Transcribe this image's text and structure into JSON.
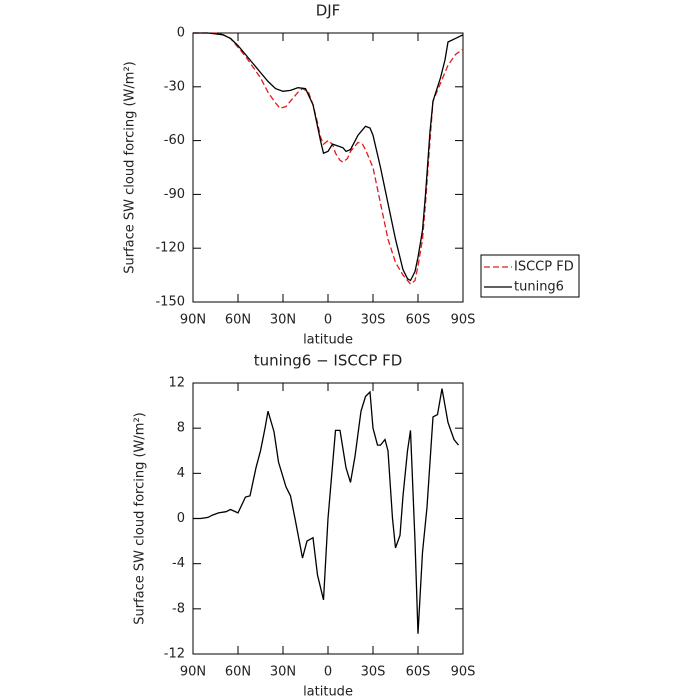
{
  "chart_data": [
    {
      "type": "line",
      "title": "DJF",
      "x_label": "latitude",
      "y_label": "Surface SW cloud forcing (W/m²)",
      "xlim": [
        90,
        -90
      ],
      "xticks": [
        {
          "value": 90,
          "label": "90N"
        },
        {
          "value": 60,
          "label": "60N"
        },
        {
          "value": 30,
          "label": "30N"
        },
        {
          "value": 0,
          "label": "0"
        },
        {
          "value": -30,
          "label": "30S"
        },
        {
          "value": -60,
          "label": "60S"
        },
        {
          "value": -90,
          "label": "90S"
        }
      ],
      "ylim": [
        -150,
        0
      ],
      "yticks": [
        -150,
        -120,
        -90,
        -60,
        -30,
        0
      ],
      "legend": "right",
      "series": [
        {
          "name": "ISCCP FD",
          "color": "#e41a1c",
          "dash": "dashed",
          "x": [
            90,
            85,
            80,
            75,
            70,
            65,
            60,
            55,
            50,
            45,
            40,
            35,
            32,
            28,
            25,
            20,
            17,
            13,
            10,
            7,
            5,
            3,
            0,
            -3,
            -5,
            -8,
            -10,
            -13,
            -15,
            -20,
            -23,
            -25,
            -30,
            -35,
            -40,
            -45,
            -50,
            -55,
            -58,
            -60,
            -63,
            -65,
            -68,
            -70,
            -75,
            -80,
            -85,
            -90
          ],
          "values": [
            0,
            0,
            0,
            0,
            -1,
            -3,
            -8,
            -13,
            -19,
            -25,
            -33,
            -39,
            -42,
            -41,
            -38,
            -33,
            -31,
            -33,
            -40,
            -50,
            -58,
            -62,
            -60,
            -62,
            -67,
            -71,
            -72,
            -70,
            -66,
            -61,
            -62,
            -65,
            -75,
            -95,
            -115,
            -128,
            -135,
            -140,
            -138,
            -130,
            -115,
            -95,
            -60,
            -38,
            -28,
            -18,
            -12,
            -9
          ]
        },
        {
          "name": "tuning6",
          "color": "#000000",
          "dash": "solid",
          "x": [
            90,
            85,
            80,
            75,
            70,
            65,
            60,
            55,
            50,
            45,
            40,
            35,
            30,
            25,
            20,
            15,
            10,
            5,
            3,
            0,
            -3,
            -5,
            -10,
            -12,
            -15,
            -20,
            -25,
            -28,
            -30,
            -35,
            -40,
            -45,
            -50,
            -53,
            -55,
            -58,
            -60,
            -63,
            -65,
            -68,
            -70,
            -75,
            -78,
            -80,
            -85,
            -90
          ],
          "values": [
            0,
            0,
            0,
            -0.5,
            -1,
            -3,
            -7,
            -12,
            -17,
            -22,
            -27,
            -31,
            -32.5,
            -32,
            -30.5,
            -31,
            -40,
            -60,
            -67,
            -66,
            -62,
            -62.5,
            -64,
            -66,
            -65,
            -57,
            -52,
            -53,
            -57,
            -75,
            -95,
            -115,
            -132,
            -137,
            -138,
            -133,
            -125,
            -110,
            -90,
            -55,
            -38,
            -25,
            -15,
            -5,
            -3,
            -1
          ]
        }
      ]
    },
    {
      "type": "line",
      "title": "tuning6 − ISCCP FD",
      "x_label": "latitude",
      "y_label": "Surface SW cloud forcing (W/m²)",
      "xlim": [
        90,
        -90
      ],
      "xticks": [
        {
          "value": 90,
          "label": "90N"
        },
        {
          "value": 60,
          "label": "60N"
        },
        {
          "value": 30,
          "label": "30N"
        },
        {
          "value": 0,
          "label": "0"
        },
        {
          "value": -30,
          "label": "30S"
        },
        {
          "value": -60,
          "label": "60S"
        },
        {
          "value": -90,
          "label": "90S"
        }
      ],
      "ylim": [
        -12,
        12
      ],
      "yticks": [
        -12,
        -8,
        -4,
        0,
        4,
        8,
        12
      ],
      "series": [
        {
          "color": "#000000",
          "dash": "solid",
          "x": [
            90,
            85,
            80,
            77,
            73,
            68,
            65,
            60,
            55,
            52,
            48,
            45,
            42,
            40,
            36,
            33,
            28,
            25,
            22,
            17,
            14,
            10,
            7,
            3,
            0,
            -5,
            -8,
            -12,
            -15,
            -18,
            -22,
            -25,
            -28,
            -30,
            -33,
            -35,
            -38,
            -40,
            -43,
            -45,
            -48,
            -50,
            -53,
            -55,
            -58,
            -60,
            -63,
            -66,
            -70,
            -73,
            -76,
            -80,
            -84,
            -87
          ],
          "values": [
            0,
            0,
            0.1,
            0.3,
            0.5,
            0.6,
            0.8,
            0.5,
            1.9,
            2,
            4.5,
            6,
            8,
            9.5,
            7.7,
            5,
            2.8,
            2,
            0,
            -3.5,
            -2,
            -1.7,
            -5,
            -7.2,
            0,
            7.8,
            7.8,
            4.5,
            3.2,
            5.5,
            9.5,
            10.8,
            11.2,
            8,
            6.5,
            6.5,
            7,
            6,
            0,
            -2.6,
            -1.5,
            2,
            6,
            7.8,
            -2,
            -10.2,
            -3,
            1,
            9,
            9.2,
            11.5,
            8.5,
            7,
            6.5
          ]
        }
      ]
    }
  ]
}
